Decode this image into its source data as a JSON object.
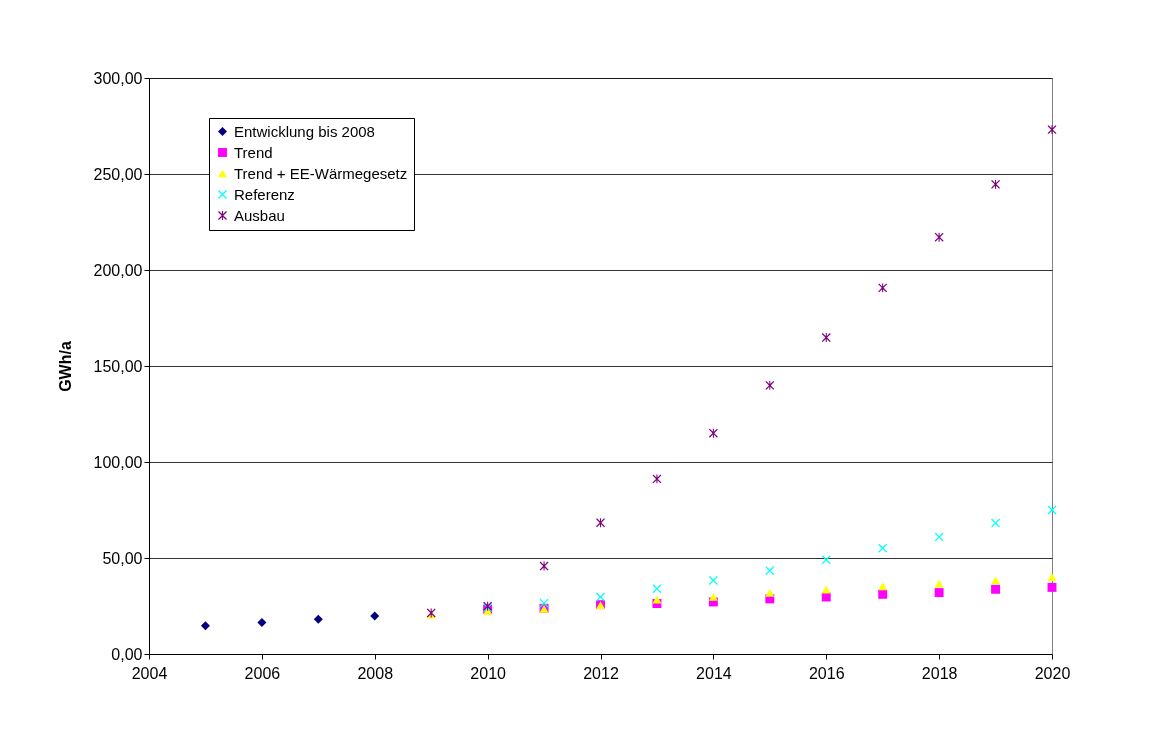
{
  "chart_data": {
    "type": "scatter",
    "ylabel": "GWh/a",
    "xlim": [
      2004,
      2020
    ],
    "xticks": [
      2004,
      2006,
      2008,
      2010,
      2012,
      2014,
      2016,
      2018,
      2020
    ],
    "ylim": [
      0,
      300
    ],
    "yticks": [
      {
        "value": 0,
        "label": "0,00"
      },
      {
        "value": 50,
        "label": "50,00"
      },
      {
        "value": 100,
        "label": "100,00"
      },
      {
        "value": 150,
        "label": "150,00"
      },
      {
        "value": 200,
        "label": "200,00"
      },
      {
        "value": 250,
        "label": "250,00"
      },
      {
        "value": 300,
        "label": "300,00"
      }
    ],
    "grid": "y",
    "legend": "top left",
    "series": [
      {
        "name": "Entwicklung bis 2008",
        "color": "#000080",
        "marker": "diamond",
        "x": [
          2005,
          2006,
          2007,
          2008
        ],
        "values": [
          14.7,
          16.4,
          18.1,
          19.8
        ]
      },
      {
        "name": "Trend",
        "color": "#ff00ff",
        "marker": "square",
        "x": [
          2010,
          2011,
          2012,
          2013,
          2014,
          2015,
          2016,
          2017,
          2018,
          2019,
          2020
        ],
        "values": [
          23.3,
          23.8,
          25.7,
          26.3,
          27.1,
          28.7,
          29.7,
          31.1,
          32.0,
          33.7,
          34.7
        ]
      },
      {
        "name": "Trend + EE-Wärmegesetz",
        "color": "#ffff00",
        "marker": "triangle",
        "x": [
          2009,
          2010,
          2011,
          2012,
          2013,
          2014,
          2015,
          2016,
          2017,
          2018,
          2019,
          2020
        ],
        "values": [
          20.5,
          22.5,
          23.5,
          25.5,
          28.3,
          29.7,
          31.8,
          33.5,
          35.2,
          36.6,
          38.3,
          40.0
        ]
      },
      {
        "name": "Referenz",
        "color": "#00ffff",
        "marker": "cross",
        "x": [
          2010,
          2011,
          2012,
          2013,
          2014,
          2015,
          2016,
          2017,
          2018,
          2019,
          2020
        ],
        "values": [
          24.2,
          26.5,
          29.7,
          34.0,
          38.3,
          43.4,
          49.1,
          55.1,
          61.0,
          68.2,
          75.0
        ]
      },
      {
        "name": "Ausbau",
        "color": "#800080",
        "marker": "star",
        "x": [
          2009,
          2010,
          2011,
          2012,
          2013,
          2014,
          2015,
          2016,
          2017,
          2018,
          2019,
          2020
        ],
        "values": [
          21.4,
          24.9,
          45.8,
          68.4,
          91.2,
          115.0,
          139.9,
          164.8,
          190.7,
          217.1,
          244.6,
          273.1
        ]
      }
    ]
  }
}
